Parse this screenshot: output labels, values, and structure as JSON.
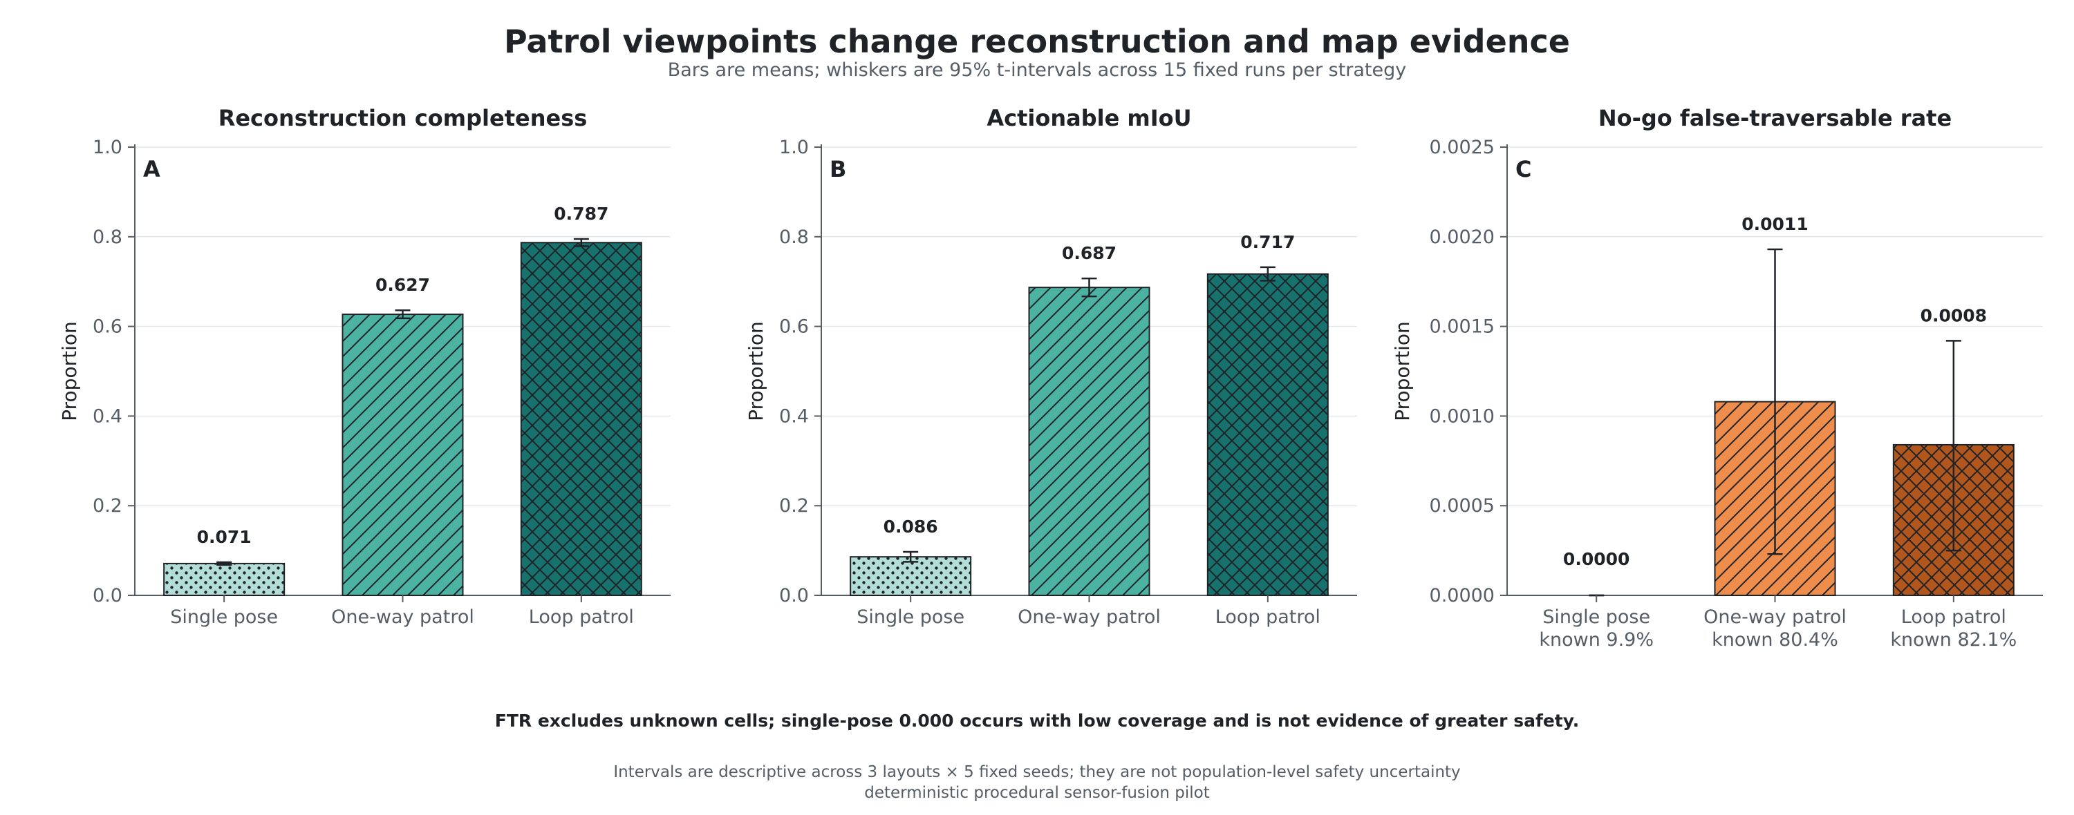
{
  "figure": {
    "title": "Patrol viewpoints change reconstruction and map evidence",
    "subtitle": "Bars are means; whiskers are 95% t-intervals across 15 fixed runs per strategy",
    "notes": [
      "FTR excludes unknown cells; single-pose 0.000 occurs with low coverage and is not evidence of greater safety.",
      "Intervals are descriptive across 3 layouts × 5 fixed seeds; they are not population-level safety uncertainty",
      "deterministic procedural sensor-fusion pilot"
    ]
  },
  "chart_data": [
    {
      "type": "bar",
      "panel": "A",
      "title": "Reconstruction completeness",
      "ylabel": "Proportion",
      "ylim": [
        0,
        1.0
      ],
      "yticks": [
        "0.0",
        "0.2",
        "0.4",
        "0.6",
        "0.8",
        "1.0"
      ],
      "ytick_values": [
        0,
        0.2,
        0.4,
        0.6,
        0.8,
        1.0
      ],
      "grid": true,
      "categories": [
        [
          "Single pose"
        ],
        [
          "One-way patrol"
        ],
        [
          "Loop patrol"
        ]
      ],
      "values": [
        0.071,
        0.627,
        0.787
      ],
      "value_labels": [
        "0.071",
        "0.627",
        "0.787"
      ],
      "ci_low": [
        0.068,
        0.618,
        0.779
      ],
      "ci_high": [
        0.074,
        0.636,
        0.795
      ],
      "colors": [
        "#b3ded7",
        "#4cb3a3",
        "#17726d"
      ],
      "hatches": [
        "dots",
        "diagonal",
        "crosshatch"
      ]
    },
    {
      "type": "bar",
      "panel": "B",
      "title": "Actionable mIoU",
      "ylabel": "Proportion",
      "ylim": [
        0,
        1.0
      ],
      "yticks": [
        "0.0",
        "0.2",
        "0.4",
        "0.6",
        "0.8",
        "1.0"
      ],
      "ytick_values": [
        0,
        0.2,
        0.4,
        0.6,
        0.8,
        1.0
      ],
      "grid": true,
      "categories": [
        [
          "Single pose"
        ],
        [
          "One-way patrol"
        ],
        [
          "Loop patrol"
        ]
      ],
      "values": [
        0.086,
        0.687,
        0.717
      ],
      "value_labels": [
        "0.086",
        "0.687",
        "0.717"
      ],
      "ci_low": [
        0.075,
        0.667,
        0.702
      ],
      "ci_high": [
        0.097,
        0.707,
        0.732
      ],
      "colors": [
        "#b3ded7",
        "#4cb3a3",
        "#17726d"
      ],
      "hatches": [
        "dots",
        "diagonal",
        "crosshatch"
      ]
    },
    {
      "type": "bar",
      "panel": "C",
      "title": "No-go false-traversable rate",
      "ylabel": "Proportion",
      "ylim": [
        0,
        0.0025
      ],
      "yticks": [
        "0.0000",
        "0.0005",
        "0.0010",
        "0.0015",
        "0.0020",
        "0.0025"
      ],
      "ytick_values": [
        0,
        0.0005,
        0.001,
        0.0015,
        0.002,
        0.0025
      ],
      "grid": true,
      "categories": [
        [
          "Single pose",
          "known 9.9%"
        ],
        [
          "One-way patrol",
          "known 80.4%"
        ],
        [
          "Loop patrol",
          "known 82.1%"
        ]
      ],
      "values": [
        0.0,
        0.00108,
        0.00084
      ],
      "value_labels": [
        "0.0000",
        "0.0011",
        "0.0008"
      ],
      "ci_low": [
        0.0,
        0.00023,
        0.00025
      ],
      "ci_high": [
        0.0,
        0.00193,
        0.00142
      ],
      "colors": [
        "#f7c9a3",
        "#ef8d4c",
        "#b1561c"
      ],
      "hatches": [
        "dots",
        "diagonal",
        "crosshatch"
      ]
    }
  ]
}
